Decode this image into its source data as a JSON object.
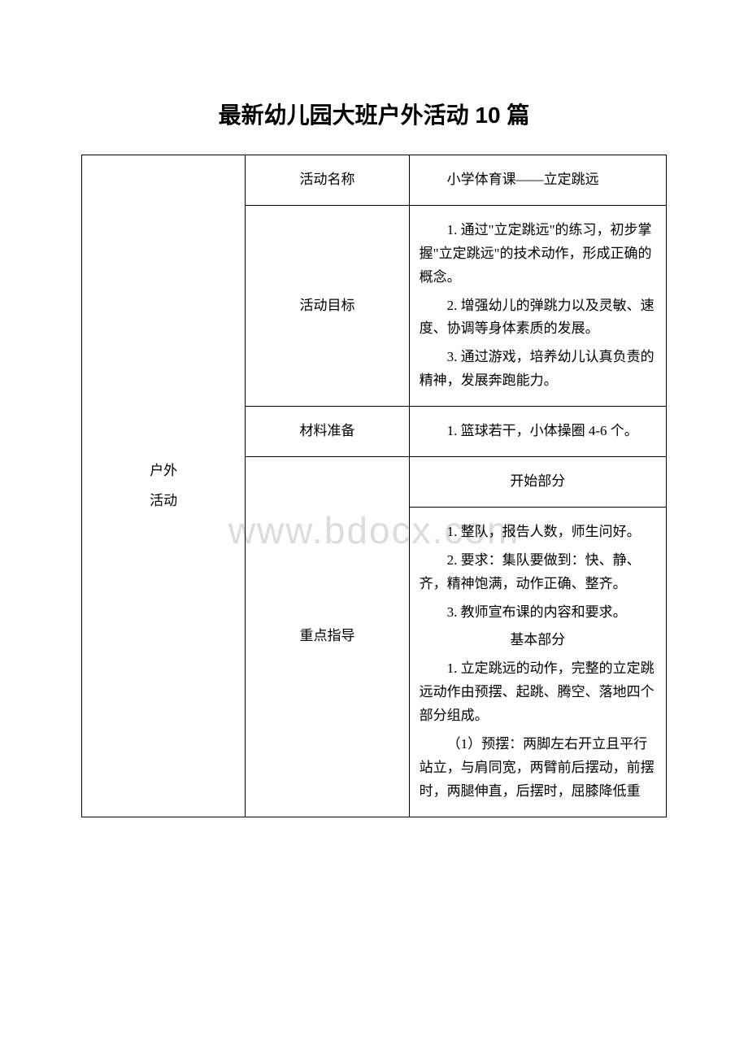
{
  "page": {
    "title": "最新幼儿园大班户外活动 10 篇",
    "watermark": "www.bdocx.com"
  },
  "table": {
    "col1_header_line1": "户外",
    "col1_header_line2": "活动",
    "rows": {
      "activity_name": {
        "label": "活动名称",
        "content": "小学体育课——立定跳远"
      },
      "activity_goal": {
        "label": "活动目标",
        "items": [
          "1. 通过\"立定跳远\"的练习，初步掌握\"立定跳远\"的技术动作，形成正确的概念。",
          "2. 增强幼儿的弹跳力以及灵敏、速度、协调等身体素质的发展。",
          "3. 通过游戏，培养幼儿认真负责的精神，发展奔跑能力。"
        ]
      },
      "materials": {
        "label": "材料准备",
        "content": "1. 篮球若干，小体操圈 4-6 个。"
      },
      "guidance": {
        "label": "重点指导",
        "section1_title": "开始部分",
        "section1_items": [
          "1. 整队，报告人数，师生问好。",
          "2. 要求：集队要做到：快、静、齐，精神饱满，动作正确、整齐。",
          "3. 教师宣布课的内容和要求。"
        ],
        "section2_title": "基本部分",
        "section2_items": [
          "1. 立定跳远的动作，完整的立定跳远动作由预摆、起跳、腾空、落地四个部分组成。",
          "（1）预摆：两脚左右开立且平行站立，与肩同宽，两臂前后摆动，前摆时，两腿伸直，后摆时，屈膝降低重"
        ]
      }
    }
  },
  "style": {
    "title_fontsize": 28,
    "body_fontsize": 17,
    "watermark_fontsize": 46,
    "border_color": "#000000",
    "text_color": "#000000",
    "watermark_color": "#dcdcdc",
    "background_color": "#ffffff"
  }
}
